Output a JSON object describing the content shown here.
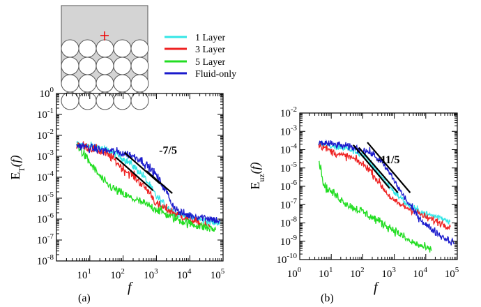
{
  "legend": [
    {
      "label": "1 Layer",
      "color": "#33e6e6"
    },
    {
      "label": "3 Layer",
      "color": "#ee2222"
    },
    {
      "label": "5 Layer",
      "color": "#22dd22"
    },
    {
      "label": "Fluid-only",
      "color": "#1a1acc"
    }
  ],
  "chart_data": [
    {
      "type": "line",
      "panel_label": "(a)",
      "xlabel": "f",
      "ylabel_main": "E",
      "ylabel_sub": "T",
      "ylabel_tail": "(f)",
      "x_scale": "log",
      "y_scale": "log",
      "xlim": [
        1,
        100000
      ],
      "ylim": [
        1e-08,
        1
      ],
      "xticks": [
        {
          "v": 10,
          "base": "10",
          "exp": "1"
        },
        {
          "v": 100,
          "base": "10",
          "exp": "2"
        },
        {
          "v": 1000,
          "base": "10",
          "exp": "3"
        },
        {
          "v": 10000,
          "base": "10",
          "exp": "4"
        },
        {
          "v": 100000,
          "base": "10",
          "exp": "5"
        }
      ],
      "yticks": [
        {
          "v": 1e-08,
          "base": "10",
          "exp": "-8"
        },
        {
          "v": 1e-07,
          "base": "10",
          "exp": "-7"
        },
        {
          "v": 1e-06,
          "base": "10",
          "exp": "-6"
        },
        {
          "v": 1e-05,
          "base": "10",
          "exp": "-5"
        },
        {
          "v": 0.0001,
          "base": "10",
          "exp": "-4"
        },
        {
          "v": 0.001,
          "base": "10",
          "exp": "-3"
        },
        {
          "v": 0.01,
          "base": "10",
          "exp": "-2"
        },
        {
          "v": 0.1,
          "base": "10",
          "exp": "-1"
        },
        {
          "v": 1,
          "base": "10",
          "exp": "0"
        }
      ],
      "series": [
        {
          "name": "1 Layer",
          "color": "#33e6e6",
          "noise": 0.28,
          "points": [
            [
              4,
              0.004
            ],
            [
              8,
              0.003
            ],
            [
              15,
              0.003
            ],
            [
              25,
              0.0022
            ],
            [
              50,
              0.0015
            ],
            [
              100,
              0.0008
            ],
            [
              200,
              0.00035
            ],
            [
              400,
              0.00012
            ],
            [
              700,
              3e-05
            ],
            [
              1000,
              1.2e-05
            ],
            [
              2000,
              4e-06
            ],
            [
              4000,
              1.8e-06
            ],
            [
              10000,
              1.2e-06
            ],
            [
              30000,
              8e-07
            ],
            [
              80000,
              6e-07
            ]
          ]
        },
        {
          "name": "3 Layer",
          "color": "#ee2222",
          "noise": 0.32,
          "points": [
            [
              4,
              0.004
            ],
            [
              10,
              0.0025
            ],
            [
              20,
              0.0018
            ],
            [
              50,
              0.0008
            ],
            [
              100,
              0.00025
            ],
            [
              200,
              0.00012
            ],
            [
              400,
              4e-05
            ],
            [
              700,
              1.5e-05
            ],
            [
              1000,
              5e-06
            ],
            [
              2000,
              3e-06
            ],
            [
              5000,
              1.5e-06
            ],
            [
              10000,
              1e-06
            ],
            [
              20000,
              6e-07
            ],
            [
              40000,
              4e-07
            ]
          ]
        },
        {
          "name": "5 Layer",
          "color": "#22dd22",
          "noise": 0.32,
          "points": [
            [
              4,
              0.004
            ],
            [
              8,
              0.0008
            ],
            [
              15,
              0.0002
            ],
            [
              30,
              5e-05
            ],
            [
              60,
              2.5e-05
            ],
            [
              100,
              1.5e-05
            ],
            [
              300,
              7e-06
            ],
            [
              1000,
              3e-06
            ],
            [
              3000,
              1.2e-06
            ],
            [
              10000,
              6e-07
            ],
            [
              30000,
              4e-07
            ],
            [
              60000,
              3e-07
            ]
          ]
        },
        {
          "name": "Fluid-only",
          "color": "#1a1acc",
          "noise": 0.3,
          "points": [
            [
              4,
              0.0035
            ],
            [
              10,
              0.0025
            ],
            [
              20,
              0.002
            ],
            [
              40,
              0.0018
            ],
            [
              80,
              0.0015
            ],
            [
              150,
              0.0012
            ],
            [
              300,
              0.0008
            ],
            [
              600,
              0.0003
            ],
            [
              1000,
              0.00012
            ],
            [
              2000,
              2e-05
            ],
            [
              3000,
              5e-06
            ],
            [
              5000,
              2e-06
            ],
            [
              10000,
              1.5e-06
            ],
            [
              30000,
              1.2e-06
            ],
            [
              80000,
              8e-07
            ]
          ]
        }
      ],
      "slope_lines": [
        {
          "p1": [
            60,
            0.0009
          ],
          "p2": [
            800,
            2.3e-05
          ]
        },
        {
          "p1": [
            110,
            0.0015
          ],
          "p2": [
            1300,
            4.8e-05
          ]
        },
        {
          "p1": [
            500,
            0.0002
          ],
          "p2": [
            3000,
            1.7e-05
          ]
        }
      ],
      "slope_label": {
        "text": "-7/5",
        "at": [
          1200,
          0.0013
        ]
      }
    },
    {
      "type": "line",
      "panel_label": "(b)",
      "xlabel": "f",
      "ylabel_main": "E",
      "ylabel_sub": "uz",
      "ylabel_tail": "(f)",
      "x_scale": "log",
      "y_scale": "log",
      "xlim": [
        1,
        100000
      ],
      "ylim": [
        1e-10,
        0.01
      ],
      "xticks": [
        {
          "v": 1,
          "base": "10",
          "exp": "0"
        },
        {
          "v": 10,
          "base": "10",
          "exp": "1"
        },
        {
          "v": 100,
          "base": "10",
          "exp": "2"
        },
        {
          "v": 1000,
          "base": "10",
          "exp": "3"
        },
        {
          "v": 10000,
          "base": "10",
          "exp": "4"
        },
        {
          "v": 100000,
          "base": "10",
          "exp": "5"
        }
      ],
      "yticks": [
        {
          "v": 1e-10,
          "base": "10",
          "exp": "-10"
        },
        {
          "v": 1e-09,
          "base": "10",
          "exp": "-9"
        },
        {
          "v": 1e-08,
          "base": "10",
          "exp": "-8"
        },
        {
          "v": 1e-07,
          "base": "10",
          "exp": "-7"
        },
        {
          "v": 1e-06,
          "base": "10",
          "exp": "-6"
        },
        {
          "v": 1e-05,
          "base": "10",
          "exp": "-5"
        },
        {
          "v": 0.0001,
          "base": "10",
          "exp": "-4"
        },
        {
          "v": 0.001,
          "base": "10",
          "exp": "-3"
        },
        {
          "v": 0.01,
          "base": "10",
          "exp": "-2"
        }
      ],
      "series": [
        {
          "name": "1 Layer",
          "color": "#33e6e6",
          "noise": 0.28,
          "points": [
            [
              4,
              0.0002
            ],
            [
              10,
              0.00015
            ],
            [
              30,
              0.00012
            ],
            [
              60,
              8e-05
            ],
            [
              100,
              5e-05
            ],
            [
              200,
              1.5e-05
            ],
            [
              500,
              2e-06
            ],
            [
              1000,
              5e-07
            ],
            [
              3000,
              8e-08
            ],
            [
              10000,
              3e-08
            ],
            [
              30000,
              2e-08
            ],
            [
              60000,
              1.2e-08
            ]
          ]
        },
        {
          "name": "3 Layer",
          "color": "#ee2222",
          "noise": 0.3,
          "points": [
            [
              4,
              0.0002
            ],
            [
              10,
              8e-05
            ],
            [
              20,
              5e-05
            ],
            [
              40,
              4e-05
            ],
            [
              80,
              2e-05
            ],
            [
              150,
              1e-05
            ],
            [
              300,
              2e-06
            ],
            [
              600,
              4e-07
            ],
            [
              1000,
              1.5e-07
            ],
            [
              2000,
              8e-08
            ],
            [
              5000,
              4e-08
            ],
            [
              10000,
              2e-08
            ],
            [
              30000,
              1e-08
            ],
            [
              60000,
              6e-09
            ]
          ]
        },
        {
          "name": "5 Layer",
          "color": "#22dd22",
          "noise": 0.35,
          "points": [
            [
              4,
              3e-05
            ],
            [
              6,
              1e-06
            ],
            [
              10,
              5e-07
            ],
            [
              20,
              2e-07
            ],
            [
              40,
              8e-08
            ],
            [
              80,
              5e-08
            ],
            [
              200,
              2e-08
            ],
            [
              500,
              8e-09
            ],
            [
              1000,
              4e-09
            ],
            [
              3000,
              1e-09
            ],
            [
              8000,
              5e-10
            ],
            [
              15000,
              3e-10
            ]
          ]
        },
        {
          "name": "Fluid-only",
          "color": "#1a1acc",
          "noise": 0.3,
          "points": [
            [
              4,
              0.00025
            ],
            [
              10,
              0.0002
            ],
            [
              30,
              0.00015
            ],
            [
              60,
              0.00012
            ],
            [
              100,
              0.0001
            ],
            [
              200,
              6e-05
            ],
            [
              400,
              2e-05
            ],
            [
              800,
              4e-06
            ],
            [
              1500,
              6e-07
            ],
            [
              3000,
              1e-07
            ],
            [
              5000,
              3e-08
            ],
            [
              10000,
              8e-09
            ],
            [
              30000,
              2e-09
            ],
            [
              80000,
              8e-10
            ]
          ]
        }
      ],
      "slope_lines": [
        {
          "p1": [
            50,
            0.00018
          ],
          "p2": [
            700,
            8e-07
          ]
        },
        {
          "p1": [
            75,
            0.00013
          ],
          "p2": [
            1300,
            4.5e-07
          ]
        },
        {
          "p1": [
            140,
            0.00025
          ],
          "p2": [
            3200,
            4.5e-07
          ]
        }
      ],
      "slope_label": {
        "text": "-11/5",
        "at": [
          280,
          1.8e-05
        ]
      }
    }
  ]
}
